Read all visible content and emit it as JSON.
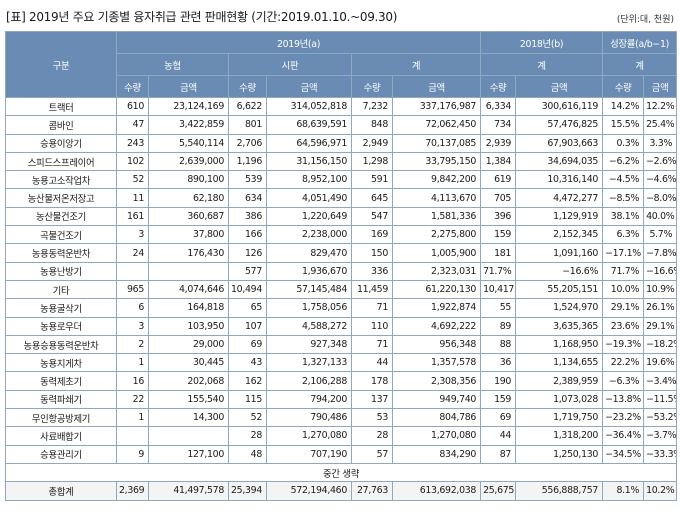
{
  "title": "[표] 2019년 주요 기종별 융자취급 관련 판매현황 (기간:2019.01.10.~09.30)",
  "unit": "(단위:대, 천원)",
  "header": {
    "category": "구분",
    "y2019": "2019년(a)",
    "y2018": "2018년(b)",
    "growth": "성장률(a/b−1)",
    "nonghyup": "농협",
    "market": "시판",
    "total": "계",
    "qty": "수량",
    "amount": "금액"
  },
  "rows": [
    {
      "name": "트랙터",
      "values": [
        "610",
        "23,124,169",
        "6,622",
        "314,052,818",
        "7,232",
        "337,176,987",
        "6,334",
        "300,616,119",
        "14.2%",
        "12.2%"
      ]
    },
    {
      "name": "콤바인",
      "values": [
        "47",
        "3,422,859",
        "801",
        "68,639,591",
        "848",
        "72,062,450",
        "734",
        "57,476,825",
        "15.5%",
        "25.4%"
      ]
    },
    {
      "name": "승용이앙기",
      "values": [
        "243",
        "5,540,114",
        "2,706",
        "64,596,971",
        "2,949",
        "70,137,085",
        "2,939",
        "67,903,663",
        "0.3%",
        "3.3%"
      ]
    },
    {
      "name": "스피드스프레이어",
      "values": [
        "102",
        "2,639,000",
        "1,196",
        "31,156,150",
        "1,298",
        "33,795,150",
        "1,384",
        "34,694,035",
        "−6.2%",
        "−2.6%"
      ]
    },
    {
      "name": "농용고소작업차",
      "values": [
        "52",
        "890,100",
        "539",
        "8,952,100",
        "591",
        "9,842,200",
        "619",
        "10,316,140",
        "−4.5%",
        "−4.6%"
      ]
    },
    {
      "name": "농산물저온저장고",
      "values": [
        "11",
        "62,180",
        "634",
        "4,051,490",
        "645",
        "4,113,670",
        "705",
        "4,472,277",
        "−8.5%",
        "−8.0%"
      ]
    },
    {
      "name": "농산물건조기",
      "values": [
        "161",
        "360,687",
        "386",
        "1,220,649",
        "547",
        "1,581,336",
        "396",
        "1,129,919",
        "38.1%",
        "40.0%"
      ]
    },
    {
      "name": "곡물건조기",
      "values": [
        "3",
        "37,800",
        "166",
        "2,238,000",
        "169",
        "2,275,800",
        "159",
        "2,152,345",
        "6.3%",
        "5.7%"
      ]
    },
    {
      "name": "농용동력운반차",
      "values": [
        "24",
        "176,430",
        "126",
        "829,470",
        "150",
        "1,005,900",
        "181",
        "1,091,160",
        "−17.1%",
        "−7.8%"
      ]
    },
    {
      "name": "농용난방기",
      "values": [
        "",
        "",
        "577",
        "1,936,670",
        "336",
        "2,323,031",
        "71.7%",
        "−16.6%",
        "71.7%",
        "−16.6%"
      ]
    },
    {
      "name": "기타",
      "values": [
        "965",
        "4,074,646",
        "10,494",
        "57,145,484",
        "11,459",
        "61,220,130",
        "10,417",
        "55,205,151",
        "10.0%",
        "10.9%"
      ]
    },
    {
      "name": "농용굴삭기",
      "values": [
        "6",
        "164,818",
        "65",
        "1,758,056",
        "71",
        "1,922,874",
        "55",
        "1,524,970",
        "29.1%",
        "26.1%"
      ]
    },
    {
      "name": "농용로우더",
      "values": [
        "3",
        "103,950",
        "107",
        "4,588,272",
        "110",
        "4,692,222",
        "89",
        "3,635,365",
        "23.6%",
        "29.1%"
      ]
    },
    {
      "name": "농용승용동력운반차",
      "values": [
        "2",
        "29,000",
        "69",
        "927,348",
        "71",
        "956,348",
        "88",
        "1,168,950",
        "−19.3%",
        "−18.2%"
      ]
    },
    {
      "name": "농용지게차",
      "values": [
        "1",
        "30,445",
        "43",
        "1,327,133",
        "44",
        "1,357,578",
        "36",
        "1,134,655",
        "22.2%",
        "19.6%"
      ]
    },
    {
      "name": "동력제초기",
      "values": [
        "16",
        "202,068",
        "162",
        "2,106,288",
        "178",
        "2,308,356",
        "190",
        "2,389,959",
        "−6.3%",
        "−3.4%"
      ]
    },
    {
      "name": "동력파쇄기",
      "values": [
        "22",
        "155,540",
        "115",
        "794,200",
        "137",
        "949,740",
        "159",
        "1,073,028",
        "−13.8%",
        "−11.5%"
      ]
    },
    {
      "name": "무인항공방제기",
      "values": [
        "1",
        "14,300",
        "52",
        "790,486",
        "53",
        "804,786",
        "69",
        "1,719,750",
        "−23.2%",
        "−53.2%"
      ]
    },
    {
      "name": "사료배합기",
      "values": [
        "",
        "",
        "28",
        "1,270,080",
        "28",
        "1,270,080",
        "44",
        "1,318,200",
        "−36.4%",
        "−3.7%"
      ]
    },
    {
      "name": "승용관리기",
      "values": [
        "9",
        "127,100",
        "48",
        "707,190",
        "57",
        "834,290",
        "87",
        "1,250,130",
        "−34.5%",
        "−33.3%"
      ]
    }
  ],
  "omission": "중간 생략",
  "total": {
    "name": "총합계",
    "values": [
      "2,369",
      "41,497,578",
      "25,394",
      "572,194,460",
      "27,763",
      "613,692,038",
      "25,675",
      "556,888,757",
      "8.1%",
      "10.2%"
    ]
  }
}
